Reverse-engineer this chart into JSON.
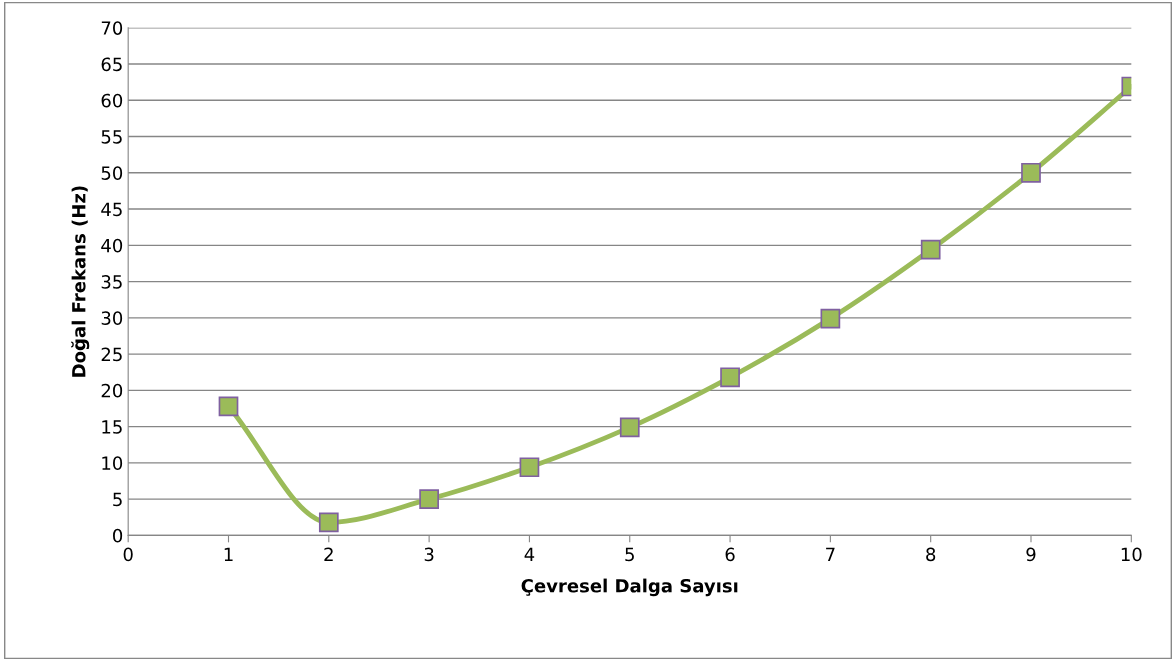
{
  "chart_data": {
    "type": "line",
    "xlabel": "Çevresel Dalga Sayısı",
    "ylabel": "Doğal Frekans (Hz)",
    "x": [
      1,
      2,
      3,
      4,
      5,
      6,
      7,
      8,
      9,
      10
    ],
    "series": [
      {
        "color": "#9bbb59",
        "values": [
          17.8,
          1.8,
          5.0,
          9.4,
          14.9,
          21.8,
          29.9,
          39.4,
          50.0,
          61.9
        ]
      }
    ],
    "xlim": [
      0,
      10
    ],
    "xticks": [
      0,
      1,
      2,
      3,
      4,
      5,
      6,
      7,
      8,
      9,
      10
    ],
    "ylim": [
      0,
      70
    ],
    "yticks": [
      0,
      5,
      10,
      15,
      20,
      25,
      30,
      35,
      40,
      45,
      50,
      55,
      60,
      65,
      70
    ],
    "grid": "y",
    "marker": "square",
    "line_style": "solid",
    "legend": false
  }
}
